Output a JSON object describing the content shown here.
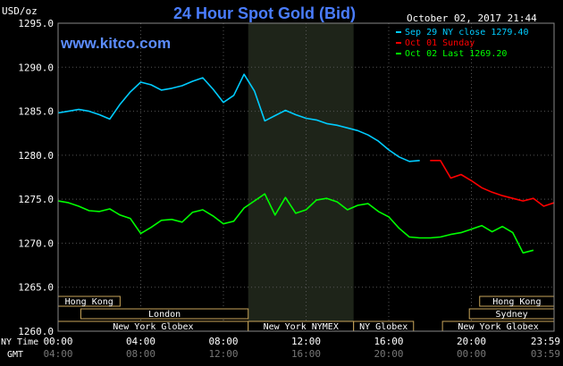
{
  "chart_data": {
    "type": "line",
    "title": "24 Hour Spot Gold (Bid)",
    "unit_label": "USD/oz",
    "watermark": "www.kitco.com",
    "timestamp": "October 02, 2017 21:44",
    "ylim": [
      1260,
      1295
    ],
    "xlim": [
      0,
      24
    ],
    "y_ticks": [
      "1295.0",
      "1290.0",
      "1285.0",
      "1280.0",
      "1275.0",
      "1270.0",
      "1265.0",
      "1260.0"
    ],
    "y_tick_values": [
      1295,
      1290,
      1285,
      1280,
      1275,
      1270,
      1265,
      1260
    ],
    "x_ticks_ny": [
      "00:00",
      "04:00",
      "08:00",
      "12:00",
      "16:00",
      "20:00",
      "23:59"
    ],
    "x_ticks_gmt": [
      "04:00",
      "08:00",
      "12:00",
      "16:00",
      "20:00",
      "00:00",
      "03:59"
    ],
    "x_tick_hours": [
      0,
      4,
      8,
      12,
      16,
      20,
      23.98
    ],
    "x_axis_ny_label": "NY Time",
    "x_axis_gmt_label": "GMT",
    "grid": true,
    "shaded_region": [
      9.2,
      14.3
    ],
    "legend_position": "top-right",
    "series": [
      {
        "name": "Sep 29 NY close 1279.40",
        "color": "#00ccff",
        "x": [
          0,
          0.5,
          1,
          1.5,
          2,
          2.5,
          3,
          3.5,
          4,
          4.5,
          5,
          5.5,
          6,
          6.5,
          7,
          7.5,
          8,
          8.5,
          9,
          9.5,
          10,
          10.5,
          11,
          11.5,
          12,
          12.5,
          13,
          13.5,
          14,
          14.5,
          15,
          15.5,
          16,
          16.5,
          17,
          17.5
        ],
        "values": [
          1284.8,
          1285.0,
          1285.2,
          1285.0,
          1284.6,
          1284.1,
          1285.8,
          1287.2,
          1288.3,
          1288.0,
          1287.4,
          1287.6,
          1287.9,
          1288.4,
          1288.8,
          1287.5,
          1286.0,
          1286.8,
          1289.2,
          1287.3,
          1283.9,
          1284.5,
          1285.1,
          1284.6,
          1284.2,
          1284.0,
          1283.6,
          1283.4,
          1283.1,
          1282.8,
          1282.3,
          1281.6,
          1280.6,
          1279.8,
          1279.3,
          1279.4
        ]
      },
      {
        "name": "Oct 01 Sunday",
        "color": "#ff0000",
        "x": [
          18,
          18.5,
          19,
          19.5,
          20,
          20.5,
          21,
          21.5,
          22,
          22.5,
          23,
          23.5,
          24
        ],
        "values": [
          1279.4,
          1279.4,
          1277.4,
          1277.8,
          1277.1,
          1276.3,
          1275.8,
          1275.4,
          1275.1,
          1274.8,
          1275.1,
          1274.2,
          1274.6
        ]
      },
      {
        "name": "Oct 02 Last 1269.20",
        "color": "#00ff00",
        "x": [
          0,
          0.5,
          1,
          1.5,
          2,
          2.5,
          3,
          3.5,
          4,
          4.5,
          5,
          5.5,
          6,
          6.5,
          7,
          7.5,
          8,
          8.5,
          9,
          9.5,
          10,
          10.5,
          11,
          11.5,
          12,
          12.5,
          13,
          13.5,
          14,
          14.5,
          15,
          15.5,
          16,
          16.5,
          17,
          17.5,
          18,
          18.5,
          19,
          19.5,
          20,
          20.5,
          21,
          21.5,
          22,
          22.5,
          23
        ],
        "values": [
          1274.8,
          1274.6,
          1274.2,
          1273.7,
          1273.6,
          1273.9,
          1273.2,
          1272.8,
          1271.1,
          1271.8,
          1272.6,
          1272.7,
          1272.4,
          1273.5,
          1273.8,
          1273.1,
          1272.2,
          1272.5,
          1274.0,
          1274.8,
          1275.6,
          1273.2,
          1275.2,
          1273.4,
          1273.8,
          1274.9,
          1275.1,
          1274.7,
          1273.8,
          1274.3,
          1274.5,
          1273.6,
          1273.0,
          1271.7,
          1270.7,
          1270.6,
          1270.6,
          1270.7,
          1271.0,
          1271.2,
          1271.6,
          1272.0,
          1271.3,
          1271.9,
          1271.2,
          1268.9,
          1269.2
        ]
      }
    ]
  },
  "sessions": [
    {
      "label": "Hong Kong",
      "start": 0,
      "end": 3
    },
    {
      "label": "London",
      "start": 1.1,
      "end": 9.2
    },
    {
      "label": "New York Globex",
      "start": 0,
      "end": 9.2
    },
    {
      "label": "New York NYMEX",
      "start": 9.2,
      "end": 14.3
    },
    {
      "label": "NY Globex",
      "start": 14.3,
      "end": 17.2
    },
    {
      "label": "Hong Kong",
      "start": 20.4,
      "end": 24
    },
    {
      "label": "Sydney",
      "start": 19.9,
      "end": 24
    },
    {
      "label": "New York Globex",
      "start": 18.6,
      "end": 24
    }
  ]
}
